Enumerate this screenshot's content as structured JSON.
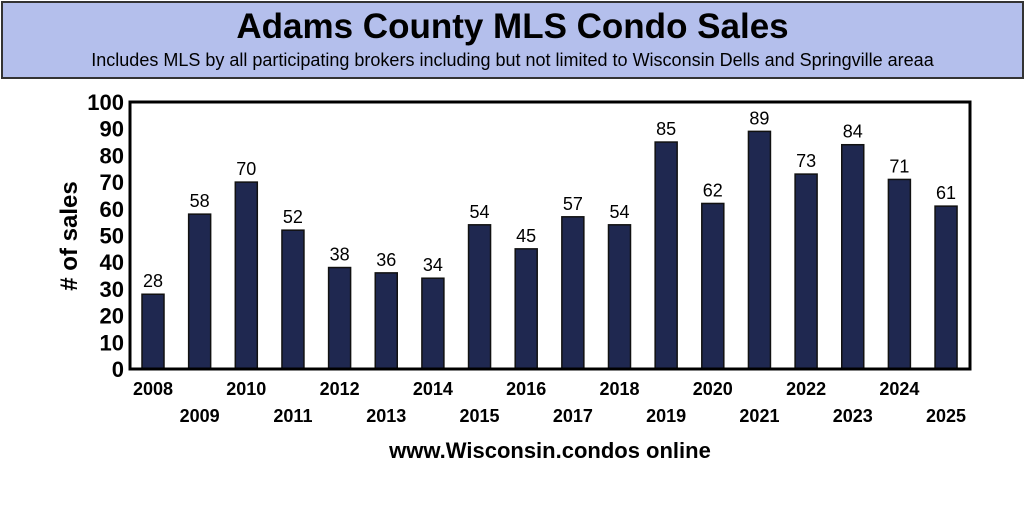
{
  "chart_data": {
    "type": "bar",
    "title": "Adams County MLS Condo Sales",
    "subtitle": "Includes MLS by all participating brokers including but not limited to Wisconsin Dells and Springville areaa",
    "xlabel": "www.Wisconsin.condos online",
    "ylabel": "# of sales",
    "ylim": [
      0,
      100
    ],
    "yticks": [
      0,
      10,
      20,
      30,
      40,
      50,
      60,
      70,
      80,
      90,
      100
    ],
    "categories": [
      "2008",
      "2009",
      "2010",
      "2011",
      "2012",
      "2013",
      "2014",
      "2015",
      "2016",
      "2017",
      "2018",
      "2019",
      "2020",
      "2021",
      "2022",
      "2023",
      "2024",
      "2025"
    ],
    "values": [
      28,
      58,
      70,
      52,
      38,
      36,
      34,
      54,
      45,
      57,
      54,
      85,
      62,
      89,
      73,
      84,
      71,
      61
    ],
    "data_labels": true,
    "grid": false,
    "legend": "none",
    "colors": {
      "bar": "#1f2850",
      "banner": "#b4bfec"
    }
  }
}
